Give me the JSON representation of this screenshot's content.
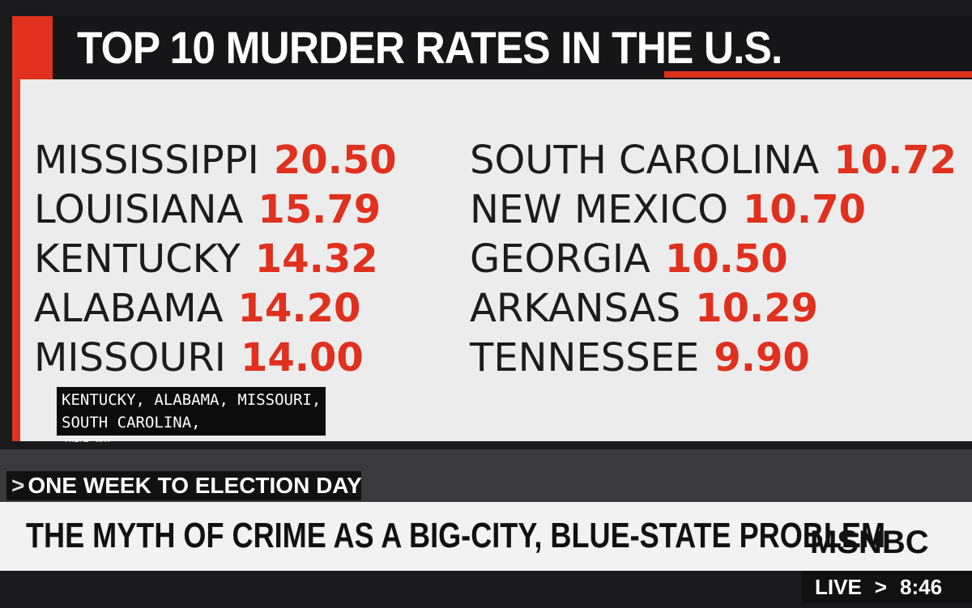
{
  "header": {
    "title": "TOP 10 MURDER RATES IN THE U.S."
  },
  "rates": [
    {
      "state": "MISSISSIPPI",
      "rate": "20.50"
    },
    {
      "state": "LOUISIANA",
      "rate": "15.79"
    },
    {
      "state": "KENTUCKY",
      "rate": "14.32"
    },
    {
      "state": "ALABAMA",
      "rate": "14.20"
    },
    {
      "state": "MISSOURI",
      "rate": "14.00"
    },
    {
      "state": "SOUTH CAROLINA",
      "rate": "10.72"
    },
    {
      "state": "NEW MEXICO",
      "rate": "10.70"
    },
    {
      "state": "GEORGIA",
      "rate": "10.50"
    },
    {
      "state": "ARKANSAS",
      "rate": "10.29"
    },
    {
      "state": "TENNESSEE",
      "rate": "9.90"
    }
  ],
  "caption": {
    "lines": [
      "KENTUCKY, ALABAMA, MISSOURI,",
      "SOUTH CAROLINA,"
    ]
  },
  "source": "THIRD WAY",
  "lower_third": {
    "kicker_marker": ">",
    "kicker": "ONE WEEK TO ELECTION DAY",
    "headline": "THE MYTH OF CRIME AS A BIG-CITY, BLUE-STATE PROBLEM",
    "network": "MSNBC",
    "live": "LIVE",
    "live_marker": ">",
    "time": "8:46"
  }
}
